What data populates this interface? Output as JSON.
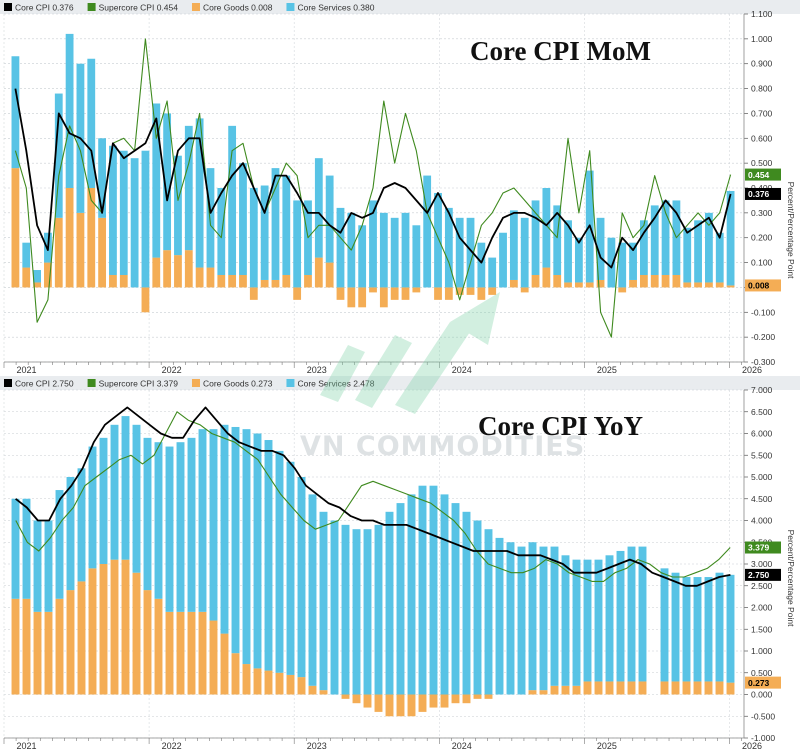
{
  "watermark": "VN COMMODITIES",
  "chart_data": [
    {
      "type": "bar",
      "title": "Core CPI MoM",
      "ylabel": "Percent/Percentage Point",
      "ylim": [
        -0.3,
        1.1
      ],
      "yticks": [
        "1.100",
        "1.000",
        "0.900",
        "0.800",
        "0.700",
        "0.600",
        "0.500",
        "0.400",
        "0.300",
        "0.200",
        "0.100",
        "0.000",
        "-0.100",
        "-0.200",
        "-0.300"
      ],
      "x_tick_labels": [
        "2021",
        "2022",
        "2023",
        "2024",
        "2025",
        "2026"
      ],
      "grid": true,
      "legend": [
        {
          "name": "Core CPI",
          "value": "0.376",
          "color": "#000000"
        },
        {
          "name": "Supercore CPI",
          "value": "0.454",
          "color": "#3f8a1f"
        },
        {
          "name": "Core Goods",
          "value": "0.008",
          "color": "#f4ad55"
        },
        {
          "name": "Core Services",
          "value": "0.380",
          "color": "#58c3e5"
        }
      ],
      "end_labels": [
        {
          "series": "Supercore CPI",
          "text": "0.454",
          "value": 0.454,
          "bg": "#3f8a1f",
          "fg": "#ffffff"
        },
        {
          "series": "Core CPI",
          "text": "0.376",
          "value": 0.376,
          "bg": "#000000",
          "fg": "#ffffff"
        },
        {
          "series": "Core Goods",
          "text": "0.008",
          "value": 0.008,
          "bg": "#f4ad55",
          "fg": "#000000"
        }
      ],
      "x_start": 2021.0,
      "x_end": 2026.1,
      "year_ticks": [
        2021,
        2022,
        2023,
        2024,
        2025,
        2026
      ],
      "year_tick_pos": [
        2021.0,
        2022.0,
        2023.0,
        2024.0,
        2025.0,
        2026.0
      ],
      "months_start": "2021-01",
      "series": [
        {
          "name": "Core Services",
          "color": "#58c3e5",
          "values": [
            0.45,
            0.1,
            0.05,
            0.12,
            0.5,
            0.62,
            0.6,
            0.52,
            0.32,
            0.52,
            0.5,
            0.52,
            0.55,
            0.62,
            0.55,
            0.4,
            0.5,
            0.6,
            0.4,
            0.35,
            0.6,
            0.45,
            0.4,
            0.38,
            0.45,
            0.4,
            0.35,
            0.3,
            0.4,
            0.35,
            0.32,
            0.3,
            0.25,
            0.35,
            0.3,
            0.28,
            0.3,
            0.25,
            0.45,
            0.38,
            0.32,
            0.28,
            0.28,
            0.18,
            0.12,
            0.22,
            0.28,
            0.28,
            0.3,
            0.32,
            0.28,
            0.25,
            0.18,
            0.45,
            0.25,
            0.2,
            0.18,
            0.15,
            0.22,
            0.28,
            0.3,
            0.3,
            0.22,
            0.25,
            0.28,
            0.2,
            0.38
          ]
        },
        {
          "name": "Core Goods",
          "color": "#f4ad55",
          "values": [
            0.48,
            0.08,
            0.02,
            0.1,
            0.28,
            0.4,
            0.3,
            0.4,
            0.28,
            0.05,
            0.05,
            0.0,
            -0.1,
            0.12,
            0.15,
            0.13,
            0.15,
            0.08,
            0.08,
            0.05,
            0.05,
            0.05,
            -0.05,
            0.03,
            0.03,
            0.05,
            -0.05,
            0.05,
            0.12,
            0.1,
            -0.05,
            -0.08,
            -0.08,
            -0.02,
            -0.08,
            -0.05,
            -0.05,
            -0.02,
            0.0,
            -0.05,
            -0.05,
            -0.03,
            -0.03,
            -0.05,
            -0.03,
            0.0,
            0.03,
            -0.02,
            0.05,
            0.08,
            0.05,
            0.02,
            0.02,
            0.02,
            0.03,
            0.0,
            -0.02,
            0.03,
            0.05,
            0.05,
            0.05,
            0.05,
            0.02,
            0.02,
            0.02,
            0.02,
            0.008
          ]
        },
        {
          "name": "Core CPI",
          "color": "#000000",
          "values": [
            0.8,
            0.55,
            0.25,
            0.15,
            0.7,
            0.62,
            0.6,
            0.55,
            0.3,
            0.58,
            0.52,
            0.55,
            0.58,
            0.68,
            0.35,
            0.55,
            0.6,
            0.6,
            0.3,
            0.38,
            0.45,
            0.5,
            0.4,
            0.3,
            0.45,
            0.45,
            0.38,
            0.3,
            0.3,
            0.25,
            0.22,
            0.3,
            0.28,
            0.3,
            0.4,
            0.42,
            0.4,
            0.35,
            0.3,
            0.38,
            0.3,
            0.2,
            0.15,
            0.1,
            0.2,
            0.28,
            0.3,
            0.3,
            0.28,
            0.25,
            0.3,
            0.25,
            0.18,
            0.25,
            0.12,
            0.08,
            0.2,
            0.15,
            0.22,
            0.28,
            0.35,
            0.3,
            0.22,
            0.25,
            0.28,
            0.2,
            0.376
          ]
        },
        {
          "name": "Supercore CPI",
          "color": "#3f8a1f",
          "values": [
            0.55,
            0.4,
            -0.14,
            -0.05,
            0.45,
            0.65,
            0.55,
            0.35,
            0.3,
            0.58,
            0.6,
            0.55,
            1.0,
            0.6,
            0.75,
            0.35,
            0.5,
            0.7,
            0.25,
            0.2,
            0.55,
            0.58,
            0.4,
            0.3,
            0.4,
            0.5,
            0.45,
            0.2,
            0.25,
            0.25,
            0.2,
            0.15,
            0.25,
            0.4,
            0.75,
            0.5,
            0.7,
            0.55,
            0.3,
            0.2,
            0.1,
            -0.05,
            0.1,
            0.25,
            0.3,
            0.38,
            0.4,
            0.35,
            0.3,
            0.25,
            0.2,
            0.6,
            0.3,
            0.55,
            -0.1,
            -0.2,
            0.3,
            0.2,
            0.25,
            0.45,
            0.3,
            0.2,
            0.25,
            0.3,
            0.25,
            0.3,
            0.454
          ]
        }
      ]
    },
    {
      "type": "bar",
      "title": "Core CPI YoY",
      "ylabel": "Percent/Percentage Point",
      "ylim": [
        -1.0,
        7.0
      ],
      "yticks": [
        "7.000",
        "6.500",
        "6.000",
        "5.500",
        "5.000",
        "4.500",
        "4.000",
        "3.500",
        "3.000",
        "2.500",
        "2.000",
        "1.500",
        "1.000",
        "0.500",
        "0.000",
        "-0.500",
        "-1.000"
      ],
      "x_tick_labels": [
        "2021",
        "2022",
        "2023",
        "2024",
        "2025",
        "2026"
      ],
      "grid": true,
      "legend": [
        {
          "name": "Core CPI",
          "value": "2.750",
          "color": "#000000"
        },
        {
          "name": "Supercore CPI",
          "value": "3.379",
          "color": "#3f8a1f"
        },
        {
          "name": "Core Goods",
          "value": "0.273",
          "color": "#f4ad55"
        },
        {
          "name": "Core Services",
          "value": "2.478",
          "color": "#58c3e5"
        }
      ],
      "end_labels": [
        {
          "series": "Supercore CPI",
          "text": "3.379",
          "value": 3.379,
          "bg": "#3f8a1f",
          "fg": "#ffffff"
        },
        {
          "series": "Core CPI",
          "text": "2.750",
          "value": 2.75,
          "bg": "#000000",
          "fg": "#ffffff"
        },
        {
          "series": "Core Goods",
          "text": "0.273",
          "value": 0.273,
          "bg": "#f4ad55",
          "fg": "#000000"
        }
      ],
      "x_start": 2021.0,
      "x_end": 2026.1,
      "year_ticks": [
        2021,
        2022,
        2023,
        2024,
        2025,
        2026
      ],
      "year_tick_pos": [
        2021.0,
        2022.0,
        2023.0,
        2024.0,
        2025.0,
        2026.0
      ],
      "months_start": "2021-01",
      "gaps": [
        57
      ],
      "series": [
        {
          "name": "Core Services",
          "color": "#58c3e5",
          "values": [
            2.3,
            2.3,
            2.1,
            2.1,
            2.5,
            2.6,
            2.6,
            2.8,
            2.9,
            3.1,
            3.3,
            3.4,
            3.5,
            3.6,
            3.8,
            3.9,
            4.0,
            4.2,
            4.4,
            4.8,
            5.2,
            5.4,
            5.4,
            5.3,
            5.1,
            4.9,
            4.6,
            4.4,
            4.1,
            4.0,
            3.9,
            3.8,
            3.8,
            3.9,
            4.2,
            4.4,
            4.6,
            4.8,
            4.8,
            4.6,
            4.4,
            4.2,
            4.0,
            3.8,
            3.6,
            3.5,
            3.4,
            3.4,
            3.3,
            3.2,
            3.0,
            2.9,
            2.8,
            2.8,
            2.9,
            3.0,
            3.1,
            3.1,
            0,
            2.6,
            2.5,
            2.4,
            2.4,
            2.4,
            2.5,
            2.478
          ]
        },
        {
          "name": "Core Goods",
          "color": "#f4ad55",
          "values": [
            2.2,
            2.2,
            1.9,
            1.9,
            2.2,
            2.4,
            2.6,
            2.9,
            3.0,
            3.1,
            3.1,
            2.8,
            2.4,
            2.2,
            1.9,
            1.9,
            1.9,
            1.9,
            1.7,
            1.4,
            0.95,
            0.7,
            0.6,
            0.55,
            0.5,
            0.45,
            0.4,
            0.2,
            0.1,
            0.0,
            -0.1,
            -0.2,
            -0.3,
            -0.4,
            -0.5,
            -0.5,
            -0.5,
            -0.4,
            -0.3,
            -0.3,
            -0.2,
            -0.2,
            -0.1,
            -0.1,
            0.0,
            0.0,
            0.0,
            0.1,
            0.1,
            0.2,
            0.2,
            0.2,
            0.3,
            0.3,
            0.3,
            0.3,
            0.3,
            0.3,
            0,
            0.3,
            0.3,
            0.3,
            0.3,
            0.3,
            0.3,
            0.273
          ]
        },
        {
          "name": "Core CPI",
          "color": "#000000",
          "values": [
            4.5,
            4.3,
            4.0,
            4.0,
            4.5,
            4.8,
            5.2,
            5.8,
            6.2,
            6.4,
            6.6,
            6.4,
            6.2,
            6.0,
            5.9,
            5.9,
            6.3,
            6.6,
            6.3,
            6.0,
            5.8,
            5.7,
            5.6,
            5.6,
            5.5,
            5.2,
            4.8,
            4.6,
            4.4,
            4.3,
            4.1,
            4.0,
            4.0,
            3.9,
            3.9,
            3.9,
            3.8,
            3.7,
            3.6,
            3.5,
            3.4,
            3.3,
            3.3,
            3.3,
            3.3,
            3.2,
            3.2,
            3.2,
            3.1,
            3.0,
            2.8,
            2.8,
            2.8,
            2.9,
            3.0,
            3.1,
            3.0,
            2.8,
            2.7,
            2.6,
            2.5,
            2.5,
            2.6,
            2.7,
            2.75
          ]
        },
        {
          "name": "Supercore CPI",
          "color": "#3f8a1f",
          "values": [
            4.0,
            3.5,
            3.3,
            3.6,
            4.0,
            4.3,
            4.8,
            5.0,
            5.2,
            5.4,
            5.5,
            5.3,
            5.5,
            6.0,
            6.5,
            6.3,
            6.2,
            6.0,
            5.9,
            5.8,
            5.6,
            5.4,
            5.0,
            4.6,
            4.3,
            4.0,
            3.8,
            3.9,
            4.0,
            4.4,
            4.8,
            4.9,
            4.8,
            4.7,
            4.6,
            4.5,
            4.4,
            4.2,
            4.0,
            3.7,
            3.3,
            3.0,
            2.9,
            2.8,
            2.8,
            2.9,
            3.1,
            3.0,
            2.8,
            2.7,
            2.6,
            2.6,
            2.8,
            2.9,
            3.1,
            3.0,
            2.8,
            2.7,
            2.7,
            2.8,
            2.9,
            3.1,
            3.379
          ]
        }
      ]
    }
  ]
}
